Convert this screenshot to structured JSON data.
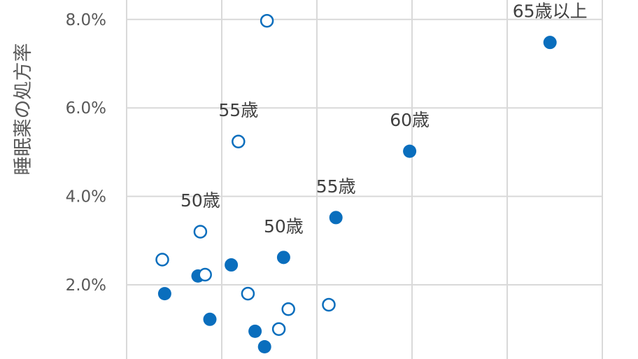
{
  "chart_data": {
    "type": "scatter",
    "title": "",
    "xlabel": "",
    "ylabel": "睡眠薬の処方率",
    "ylim": [
      0.0,
      8.5
    ],
    "xlim": [
      0,
      100
    ],
    "y_ticks": [
      {
        "value": 2.0,
        "label": "2.0%"
      },
      {
        "value": 4.0,
        "label": "4.0%"
      },
      {
        "value": 6.0,
        "label": "6.0%"
      },
      {
        "value": 8.0,
        "label": "8.0%"
      }
    ],
    "x_gridlines": [
      20,
      40,
      60,
      80,
      100
    ],
    "grid": true,
    "legend": "none",
    "colors": {
      "series": "#0a6ebd",
      "grid": "#d9d9d9",
      "axis_text": "#595959",
      "label_text": "#404040"
    },
    "series": [
      {
        "style": "filled",
        "points": [
          {
            "x": 8.0,
            "y": 1.8
          },
          {
            "x": 15.0,
            "y": 2.2
          },
          {
            "x": 17.5,
            "y": 1.22
          },
          {
            "x": 22.0,
            "y": 2.45
          },
          {
            "x": 27.0,
            "y": 0.95
          },
          {
            "x": 29.0,
            "y": 0.6
          },
          {
            "x": 33.0,
            "y": 2.62,
            "label": "50歳"
          },
          {
            "x": 44.0,
            "y": 3.52,
            "label": "55歳"
          },
          {
            "x": 59.5,
            "y": 5.02,
            "label": "60歳"
          },
          {
            "x": 89.0,
            "y": 7.48,
            "label": "65歳以上"
          }
        ]
      },
      {
        "style": "hollow",
        "points": [
          {
            "x": 7.5,
            "y": 2.57
          },
          {
            "x": 15.5,
            "y": 3.2,
            "label": "50歳"
          },
          {
            "x": 16.5,
            "y": 2.23
          },
          {
            "x": 23.5,
            "y": 5.24,
            "label": "55歳"
          },
          {
            "x": 25.5,
            "y": 1.8
          },
          {
            "x": 29.5,
            "y": 7.97
          },
          {
            "x": 32.0,
            "y": 1.0
          },
          {
            "x": 34.0,
            "y": 1.45
          },
          {
            "x": 42.5,
            "y": 1.55
          }
        ]
      }
    ]
  }
}
